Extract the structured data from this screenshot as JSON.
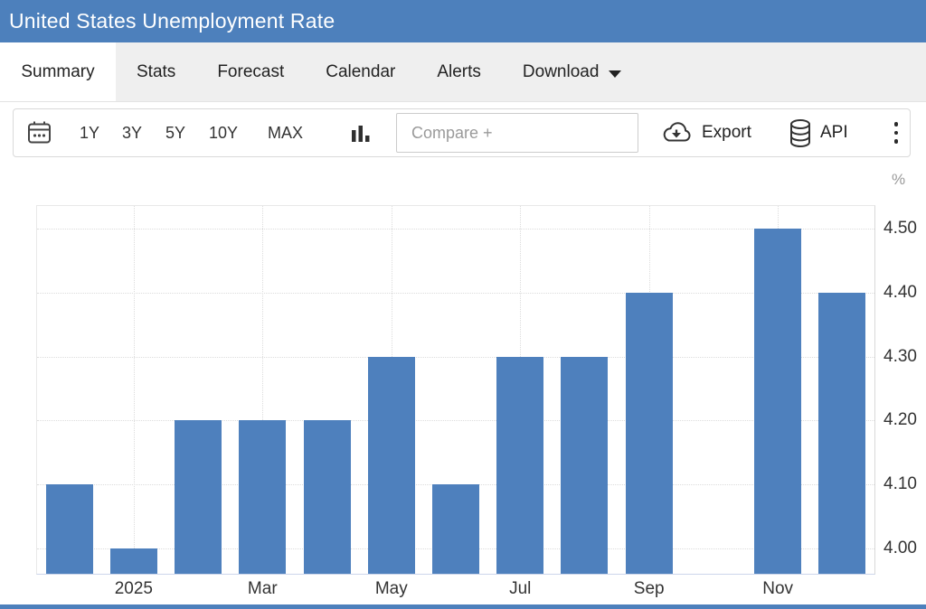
{
  "title_bar": {
    "title": "United States Unemployment Rate"
  },
  "tabs": [
    {
      "label": "Summary",
      "active": true
    },
    {
      "label": "Stats"
    },
    {
      "label": "Forecast"
    },
    {
      "label": "Calendar"
    },
    {
      "label": "Alerts"
    },
    {
      "label": "Download",
      "caret": "caret-down-icon"
    }
  ],
  "toolbar": {
    "calendar_icon": "calendar-icon",
    "ranges": [
      "1Y",
      "3Y",
      "5Y",
      "10Y",
      "MAX"
    ],
    "chart_type_icon": "column-chart-icon",
    "compare_placeholder": "Compare +",
    "export_label": "Export",
    "export_icon": "cloud-download-icon",
    "api_label": "API",
    "api_icon": "database-icon",
    "more_icon": "kebab-menu-icon"
  },
  "colors": {
    "accent_blue": "#4d80bc",
    "bar_blue": "#4e80bd",
    "grid": "#dcdcdc",
    "axis_text": "#333333",
    "unit_text": "#999999"
  },
  "chart_data": {
    "type": "bar",
    "title": "United States Unemployment Rate",
    "unit_label": "%",
    "bar_color": "#4e80bd",
    "ylim": [
      3.96,
      4.536
    ],
    "grid": true,
    "legend": "none",
    "y_ticks": [
      {
        "value": 4.0,
        "label": "4.00"
      },
      {
        "value": 4.1,
        "label": "4.10"
      },
      {
        "value": 4.2,
        "label": "4.20"
      },
      {
        "value": 4.3,
        "label": "4.30"
      },
      {
        "value": 4.4,
        "label": "4.40"
      },
      {
        "value": 4.5,
        "label": "4.50"
      }
    ],
    "values": [
      4.1,
      4.0,
      4.2,
      4.2,
      4.2,
      4.3,
      4.1,
      4.3,
      4.3,
      4.4,
      null,
      4.5,
      4.4
    ],
    "x_ticks": [
      {
        "slot": 1,
        "label": "2025"
      },
      {
        "slot": 3,
        "label": "Mar"
      },
      {
        "slot": 5,
        "label": "May"
      },
      {
        "slot": 7,
        "label": "Jul"
      },
      {
        "slot": 9,
        "label": "Sep"
      },
      {
        "slot": 11,
        "label": "Nov"
      }
    ]
  }
}
